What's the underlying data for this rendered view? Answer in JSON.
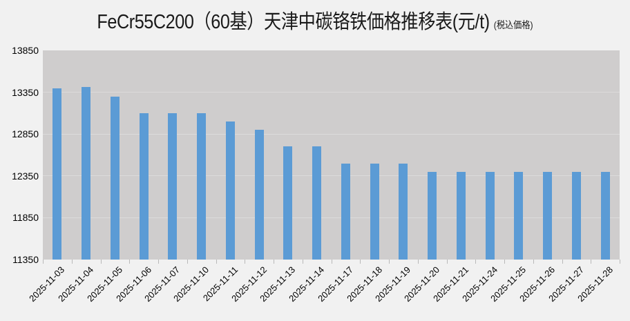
{
  "title": {
    "main": "FeCr55C200（60基）天津中碳铬铁価格推移表(元/t)",
    "note": "(税込価格)"
  },
  "colors": {
    "page_bg": "#f1f1f1",
    "plot_bg": "#cfcdcd",
    "gridline": "#dcdbdb",
    "bar": "#5b9bd5",
    "tick": "#b9b9b9",
    "text": "#000000",
    "title_text": "#1a1a1a"
  },
  "chart_data": {
    "type": "bar",
    "title": "FeCr55C200（60基）天津中碳铬铁価格推移表(元/t) (税込価格)",
    "xlabel": "",
    "ylabel": "",
    "categories": [
      "2025-11-03",
      "2025-11-04",
      "2025-11-05",
      "2025-11-06",
      "2025-11-07",
      "2025-11-10",
      "2025-11-11",
      "2025-11-12",
      "2025-11-13",
      "2025-11-14",
      "2025-11-17",
      "2025-11-18",
      "2025-11-19",
      "2025-11-20",
      "2025-11-21",
      "2025-11-24",
      "2025-11-25",
      "2025-11-26",
      "2025-11-27",
      "2025-11-28"
    ],
    "values": [
      13400,
      13410,
      13300,
      13100,
      13100,
      13100,
      13000,
      12900,
      12700,
      12700,
      12500,
      12500,
      12500,
      12400,
      12400,
      12400,
      12400,
      12400,
      12400,
      12400
    ],
    "ylim": [
      11350,
      13850
    ],
    "yticks": [
      13850,
      13350,
      12850,
      12350,
      11850,
      11350
    ],
    "ytick_step": 500,
    "grid": true,
    "legend": false,
    "bar_color": "#5b9bd5"
  }
}
